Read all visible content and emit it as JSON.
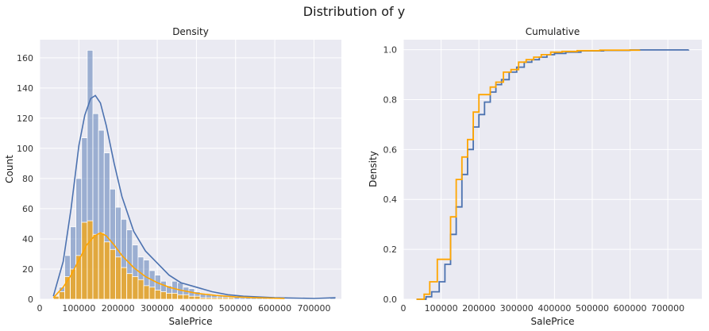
{
  "title": "Distribution of y",
  "chart_data": [
    {
      "type": "bar",
      "title": "Density",
      "xlabel": "SalePrice",
      "ylabel": "Count",
      "xlim": [
        0,
        770000
      ],
      "ylim": [
        0,
        172
      ],
      "xticks": [
        "0",
        "100000",
        "200000",
        "300000",
        "400000",
        "500000",
        "600000",
        "700000"
      ],
      "yticks": [
        "0",
        "20",
        "40",
        "60",
        "80",
        "100",
        "120",
        "140",
        "160"
      ],
      "grid": true,
      "colors": {
        "blue": "#4c72b0",
        "orange": "#ffa500",
        "background": "#eaeaf2"
      },
      "series": [
        {
          "bin_start": 34900,
          "bin_width": 14410,
          "values": [
            2,
            8,
            29,
            48,
            80,
            107,
            165,
            123,
            112,
            97,
            73,
            61,
            53,
            46,
            36,
            28,
            26,
            19,
            16,
            12,
            9,
            12,
            11,
            8,
            7,
            5,
            4,
            3,
            3,
            2,
            2,
            2,
            2,
            1,
            1,
            1,
            1,
            1,
            1,
            1,
            1,
            0,
            0,
            0,
            0,
            0,
            0,
            0,
            0,
            1
          ],
          "kde": [
            [
              34900,
              2
            ],
            [
              60000,
              25
            ],
            [
              80000,
              60
            ],
            [
              100000,
              102
            ],
            [
              115000,
              122
            ],
            [
              130000,
              133
            ],
            [
              142000,
              135
            ],
            [
              155000,
              130
            ],
            [
              170000,
              115
            ],
            [
              190000,
              90
            ],
            [
              210000,
              68
            ],
            [
              240000,
              45
            ],
            [
              270000,
              32
            ],
            [
              300000,
              24
            ],
            [
              330000,
              16
            ],
            [
              360000,
              11
            ],
            [
              400000,
              8
            ],
            [
              440000,
              5
            ],
            [
              480000,
              3
            ],
            [
              520000,
              2
            ],
            [
              600000,
              1
            ],
            [
              700000,
              0.5
            ],
            [
              755000,
              1
            ]
          ]
        },
        {
          "bin_start": 34900,
          "bin_width": 14410,
          "values": [
            2,
            5,
            15,
            20,
            29,
            51,
            52,
            43,
            44,
            38,
            33,
            28,
            21,
            17,
            15,
            13,
            9,
            8,
            6,
            5,
            4,
            4,
            3,
            3,
            2,
            2,
            1,
            1,
            1,
            1,
            1,
            1
          ],
          "kde": [
            [
              34900,
              1
            ],
            [
              60000,
              8
            ],
            [
              80000,
              16
            ],
            [
              100000,
              26
            ],
            [
              120000,
              36
            ],
            [
              140000,
              42
            ],
            [
              155000,
              44
            ],
            [
              170000,
              42
            ],
            [
              190000,
              36
            ],
            [
              210000,
              29
            ],
            [
              240000,
              21
            ],
            [
              270000,
              15
            ],
            [
              300000,
              11
            ],
            [
              330000,
              8
            ],
            [
              360000,
              6
            ],
            [
              400000,
              4
            ],
            [
              450000,
              2.5
            ],
            [
              500000,
              1.5
            ],
            [
              550000,
              1
            ],
            [
              625000,
              0.5
            ]
          ]
        }
      ]
    },
    {
      "type": "line",
      "title": "Cumulative",
      "xlabel": "SalePrice",
      "ylabel": "Density",
      "xlim": [
        0,
        790000
      ],
      "ylim": [
        0,
        1.04
      ],
      "xticks": [
        "0",
        "100000",
        "200000",
        "300000",
        "400000",
        "500000",
        "600000",
        "700000"
      ],
      "yticks": [
        "0.0",
        "0.2",
        "0.4",
        "0.6",
        "0.8",
        "1.0"
      ],
      "grid": true,
      "series": [
        {
          "x": [
            34900,
            60000,
            75000,
            95000,
            110000,
            125000,
            140000,
            155000,
            170000,
            185000,
            200000,
            215000,
            230000,
            245000,
            260000,
            280000,
            300000,
            320000,
            340000,
            360000,
            380000,
            400000,
            430000,
            470000,
            530000,
            600000,
            755000
          ],
          "y": [
            0.0,
            0.01,
            0.03,
            0.07,
            0.14,
            0.26,
            0.37,
            0.5,
            0.6,
            0.69,
            0.74,
            0.79,
            0.83,
            0.86,
            0.88,
            0.91,
            0.93,
            0.95,
            0.96,
            0.97,
            0.98,
            0.985,
            0.99,
            0.995,
            0.997,
            0.999,
            1.0
          ]
        },
        {
          "x": [
            34900,
            55000,
            70000,
            90000,
            105000,
            125000,
            140000,
            155000,
            170000,
            185000,
            200000,
            215000,
            230000,
            245000,
            265000,
            285000,
            305000,
            325000,
            345000,
            365000,
            390000,
            420000,
            460000,
            520000,
            625000
          ],
          "y": [
            0.0,
            0.02,
            0.07,
            0.16,
            0.16,
            0.33,
            0.48,
            0.57,
            0.64,
            0.75,
            0.82,
            0.82,
            0.85,
            0.87,
            0.91,
            0.92,
            0.95,
            0.96,
            0.97,
            0.98,
            0.99,
            0.993,
            0.996,
            0.998,
            1.0
          ]
        }
      ]
    }
  ]
}
